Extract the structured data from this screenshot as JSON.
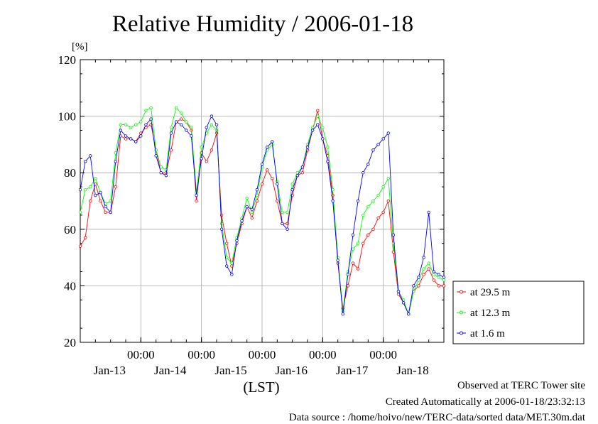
{
  "chart_data": {
    "type": "line",
    "title": "Relative Humidity / 2006-01-18",
    "ylabel_unit": "[%]",
    "xlabel": "(LST)",
    "ylim": [
      20,
      120
    ],
    "y_ticks": [
      20,
      40,
      60,
      80,
      100,
      120
    ],
    "x_unit": "hours since 2006-01-12 00:00 LST",
    "xlim": [
      12,
      156
    ],
    "x_ticks": [
      {
        "x": 36,
        "time": "00:00",
        "date": "Jan-13"
      },
      {
        "x": 60,
        "time": "00:00",
        "date": "Jan-14"
      },
      {
        "x": 84,
        "time": "00:00",
        "date": "Jan-15"
      },
      {
        "x": 108,
        "time": "00:00",
        "date": "Jan-16"
      },
      {
        "x": 132,
        "time": "00:00",
        "date": "Jan-17"
      },
      {
        "x": 156,
        "time": "",
        "date": "Jan-18"
      }
    ],
    "grid": true,
    "legend_position": "right",
    "series": [
      {
        "name": "at 29.5 m",
        "color": "#ff0000",
        "x": [
          12,
          14,
          16,
          18,
          20,
          22,
          24,
          26,
          28,
          30,
          32,
          34,
          36,
          38,
          40,
          42,
          44,
          46,
          48,
          50,
          52,
          54,
          56,
          58,
          60,
          62,
          64,
          66,
          68,
          70,
          72,
          74,
          76,
          78,
          80,
          82,
          84,
          86,
          88,
          90,
          92,
          94,
          96,
          98,
          100,
          102,
          104,
          106,
          108,
          110,
          112,
          114,
          116,
          118,
          120,
          122,
          124,
          126,
          128,
          130,
          132,
          134,
          136,
          138,
          140,
          142,
          144,
          146,
          148,
          150,
          152,
          154,
          156
        ],
        "y": [
          54,
          57,
          70,
          76,
          70,
          66,
          66,
          75,
          93,
          92,
          92,
          91,
          94,
          96,
          97,
          88,
          80,
          80,
          88,
          98,
          99,
          98,
          95,
          70,
          87,
          84,
          88,
          94,
          65,
          55,
          47,
          55,
          62,
          68,
          64,
          70,
          76,
          81,
          78,
          70,
          62,
          62,
          72,
          79,
          80,
          88,
          95,
          102,
          92,
          86,
          72,
          48,
          32,
          40,
          48,
          46,
          55,
          58,
          60,
          64,
          66,
          70,
          52,
          37,
          34,
          30,
          38,
          40,
          44,
          46,
          42,
          40,
          40
        ]
      },
      {
        "name": "at 12.3 m",
        "color": "#00ff00",
        "x": [
          12,
          14,
          16,
          18,
          20,
          22,
          24,
          26,
          28,
          30,
          32,
          34,
          36,
          38,
          40,
          42,
          44,
          46,
          48,
          50,
          52,
          54,
          56,
          58,
          60,
          62,
          64,
          66,
          68,
          70,
          72,
          74,
          76,
          78,
          80,
          82,
          84,
          86,
          88,
          90,
          92,
          94,
          96,
          98,
          100,
          102,
          104,
          106,
          108,
          110,
          112,
          114,
          116,
          118,
          120,
          122,
          124,
          126,
          128,
          130,
          132,
          134,
          136,
          138,
          140,
          142,
          144,
          146,
          148,
          150,
          152,
          154,
          156
        ],
        "y": [
          66,
          74,
          75,
          78,
          73,
          69,
          70,
          87,
          97,
          97,
          96,
          97,
          98,
          102,
          103,
          88,
          82,
          81,
          96,
          103,
          101,
          98,
          96,
          73,
          89,
          94,
          97,
          95,
          62,
          50,
          48,
          57,
          64,
          71,
          66,
          72,
          82,
          88,
          90,
          77,
          66,
          66,
          76,
          80,
          82,
          90,
          96,
          100,
          96,
          89,
          74,
          50,
          31,
          45,
          53,
          55,
          65,
          68,
          70,
          72,
          75,
          78,
          55,
          38,
          35,
          30,
          38,
          42,
          46,
          48,
          44,
          43,
          42
        ]
      },
      {
        "name": "at 1.6 m",
        "color": "#0000ff",
        "x": [
          12,
          14,
          16,
          18,
          20,
          22,
          24,
          26,
          28,
          30,
          32,
          34,
          36,
          38,
          40,
          42,
          44,
          46,
          48,
          50,
          52,
          54,
          56,
          58,
          60,
          62,
          64,
          66,
          68,
          70,
          72,
          74,
          76,
          78,
          80,
          82,
          84,
          86,
          88,
          90,
          92,
          94,
          96,
          98,
          100,
          102,
          104,
          106,
          108,
          110,
          112,
          114,
          116,
          118,
          120,
          122,
          124,
          126,
          128,
          130,
          132,
          134,
          136,
          138,
          140,
          142,
          144,
          146,
          148,
          150,
          152,
          154,
          156
        ],
        "y": [
          74,
          84,
          86,
          72,
          73,
          68,
          66,
          84,
          95,
          93,
          92,
          91,
          93,
          97,
          99,
          86,
          80,
          79,
          94,
          98,
          97,
          95,
          93,
          72,
          85,
          96,
          100,
          97,
          60,
          47,
          44,
          56,
          63,
          68,
          67,
          74,
          83,
          89,
          91,
          76,
          62,
          60,
          74,
          79,
          82,
          89,
          95,
          97,
          92,
          84,
          70,
          49,
          30,
          44,
          58,
          70,
          80,
          83,
          88,
          90,
          92,
          94,
          58,
          38,
          34,
          30,
          40,
          43,
          50,
          66,
          45,
          44,
          43
        ]
      }
    ]
  },
  "footer": {
    "observed": "Observed at TERC Tower site",
    "created": "Created Automatically at 2006-01-18/23:32:13",
    "source": "Data source : /home/hoivo/new/TERC-data/sorted  data/MET.30m.dat"
  }
}
